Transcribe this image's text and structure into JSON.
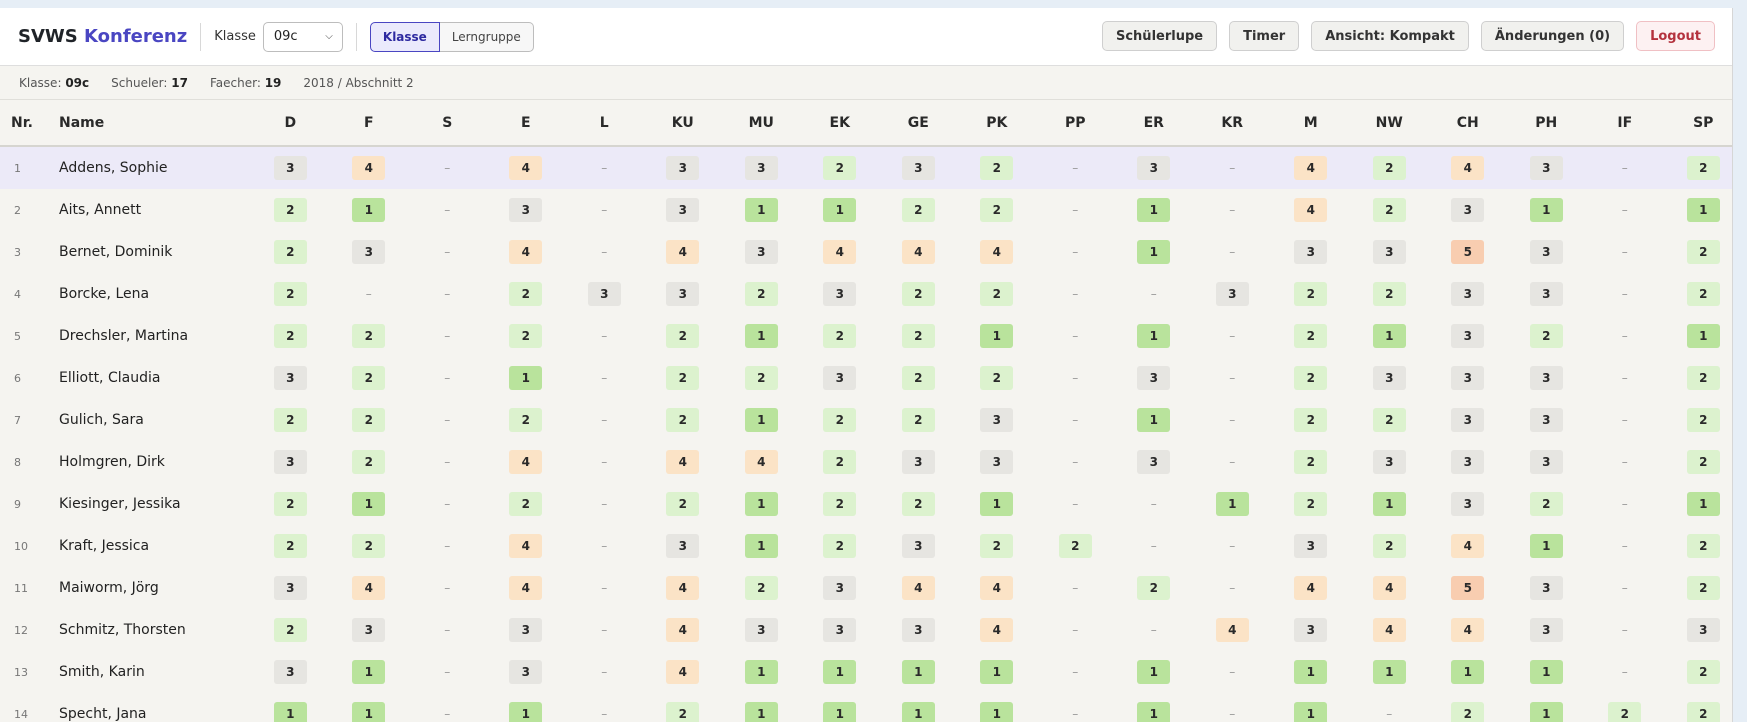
{
  "header": {
    "brand_part1": "SVWS",
    "brand_part2": "Konferenz",
    "klasse_label": "Klasse",
    "klasse_value": "09c",
    "toggle": [
      "Klasse",
      "Lerngruppe"
    ],
    "buttons": {
      "schuelerlupe": "Schülerlupe",
      "timer": "Timer",
      "ansicht": "Ansicht: Kompakt",
      "aenderungen": "Änderungen (0)",
      "logout": "Logout"
    }
  },
  "info": {
    "klasse_key": "Klasse:",
    "klasse_val": "09c",
    "schueler_key": "Schueler:",
    "schueler_val": "17",
    "faecher_key": "Faecher:",
    "faecher_val": "19",
    "period": "2018 / Abschnitt 2"
  },
  "table": {
    "col_nr": "Nr.",
    "col_name": "Name",
    "subjects": [
      "D",
      "F",
      "S",
      "E",
      "L",
      "KU",
      "MU",
      "EK",
      "GE",
      "PK",
      "PP",
      "ER",
      "KR",
      "M",
      "NW",
      "CH",
      "PH",
      "IF",
      "SP"
    ],
    "rows": [
      {
        "nr": "1",
        "name": "Addens, Sophie",
        "grades": [
          "3",
          "4",
          "–",
          "4",
          "–",
          "3",
          "3",
          "2",
          "3",
          "2",
          "–",
          "3",
          "–",
          "4",
          "2",
          "4",
          "3",
          "–",
          "2"
        ]
      },
      {
        "nr": "2",
        "name": "Aits, Annett",
        "grades": [
          "2",
          "1",
          "–",
          "3",
          "–",
          "3",
          "1",
          "1",
          "2",
          "2",
          "–",
          "1",
          "–",
          "4",
          "2",
          "3",
          "1",
          "–",
          "1"
        ]
      },
      {
        "nr": "3",
        "name": "Bernet, Dominik",
        "grades": [
          "2",
          "3",
          "–",
          "4",
          "–",
          "4",
          "3",
          "4",
          "4",
          "4",
          "–",
          "1",
          "–",
          "3",
          "3",
          "5",
          "3",
          "–",
          "2"
        ]
      },
      {
        "nr": "4",
        "name": "Borcke, Lena",
        "grades": [
          "2",
          "–",
          "–",
          "2",
          "3",
          "3",
          "2",
          "3",
          "2",
          "2",
          "–",
          "–",
          "3",
          "2",
          "2",
          "3",
          "3",
          "–",
          "2"
        ]
      },
      {
        "nr": "5",
        "name": "Drechsler, Martina",
        "grades": [
          "2",
          "2",
          "–",
          "2",
          "–",
          "2",
          "1",
          "2",
          "2",
          "1",
          "–",
          "1",
          "–",
          "2",
          "1",
          "3",
          "2",
          "–",
          "1"
        ]
      },
      {
        "nr": "6",
        "name": "Elliott, Claudia",
        "grades": [
          "3",
          "2",
          "–",
          "1",
          "–",
          "2",
          "2",
          "3",
          "2",
          "2",
          "–",
          "3",
          "–",
          "2",
          "3",
          "3",
          "3",
          "–",
          "2"
        ]
      },
      {
        "nr": "7",
        "name": "Gulich, Sara",
        "grades": [
          "2",
          "2",
          "–",
          "2",
          "–",
          "2",
          "1",
          "2",
          "2",
          "3",
          "–",
          "1",
          "–",
          "2",
          "2",
          "3",
          "3",
          "–",
          "2"
        ]
      },
      {
        "nr": "8",
        "name": "Holmgren, Dirk",
        "grades": [
          "3",
          "2",
          "–",
          "4",
          "–",
          "4",
          "4",
          "2",
          "3",
          "3",
          "–",
          "3",
          "–",
          "2",
          "3",
          "3",
          "3",
          "–",
          "2"
        ]
      },
      {
        "nr": "9",
        "name": "Kiesinger, Jessika",
        "grades": [
          "2",
          "1",
          "–",
          "2",
          "–",
          "2",
          "1",
          "2",
          "2",
          "1",
          "–",
          "–",
          "1",
          "2",
          "1",
          "3",
          "2",
          "–",
          "1"
        ]
      },
      {
        "nr": "10",
        "name": "Kraft, Jessica",
        "grades": [
          "2",
          "2",
          "–",
          "4",
          "–",
          "3",
          "1",
          "2",
          "3",
          "2",
          "2",
          "–",
          "–",
          "3",
          "2",
          "4",
          "1",
          "–",
          "2"
        ]
      },
      {
        "nr": "11",
        "name": "Maiworm, Jörg",
        "grades": [
          "3",
          "4",
          "–",
          "4",
          "–",
          "4",
          "2",
          "3",
          "4",
          "4",
          "–",
          "2",
          "–",
          "4",
          "4",
          "5",
          "3",
          "–",
          "2"
        ]
      },
      {
        "nr": "12",
        "name": "Schmitz, Thorsten",
        "grades": [
          "2",
          "3",
          "–",
          "3",
          "–",
          "4",
          "3",
          "3",
          "3",
          "4",
          "–",
          "–",
          "4",
          "3",
          "4",
          "4",
          "3",
          "–",
          "3"
        ]
      },
      {
        "nr": "13",
        "name": "Smith, Karin",
        "grades": [
          "3",
          "1",
          "–",
          "3",
          "–",
          "4",
          "1",
          "1",
          "1",
          "1",
          "–",
          "1",
          "–",
          "1",
          "1",
          "1",
          "1",
          "–",
          "2"
        ]
      },
      {
        "nr": "14",
        "name": "Specht, Jana",
        "grades": [
          "1",
          "1",
          "–",
          "1",
          "–",
          "2",
          "1",
          "1",
          "1",
          "1",
          "–",
          "1",
          "–",
          "1",
          "–",
          "2",
          "1",
          "2",
          "2"
        ]
      }
    ]
  },
  "colors": {
    "grade1": "#b9e39c",
    "grade2": "#dcf2ce",
    "grade3": "#e6e5e1",
    "grade4": "#fbe3c6",
    "grade5": "#f8cdb0",
    "accent": "#4a46c2",
    "selected_row": "#eceaf8"
  }
}
